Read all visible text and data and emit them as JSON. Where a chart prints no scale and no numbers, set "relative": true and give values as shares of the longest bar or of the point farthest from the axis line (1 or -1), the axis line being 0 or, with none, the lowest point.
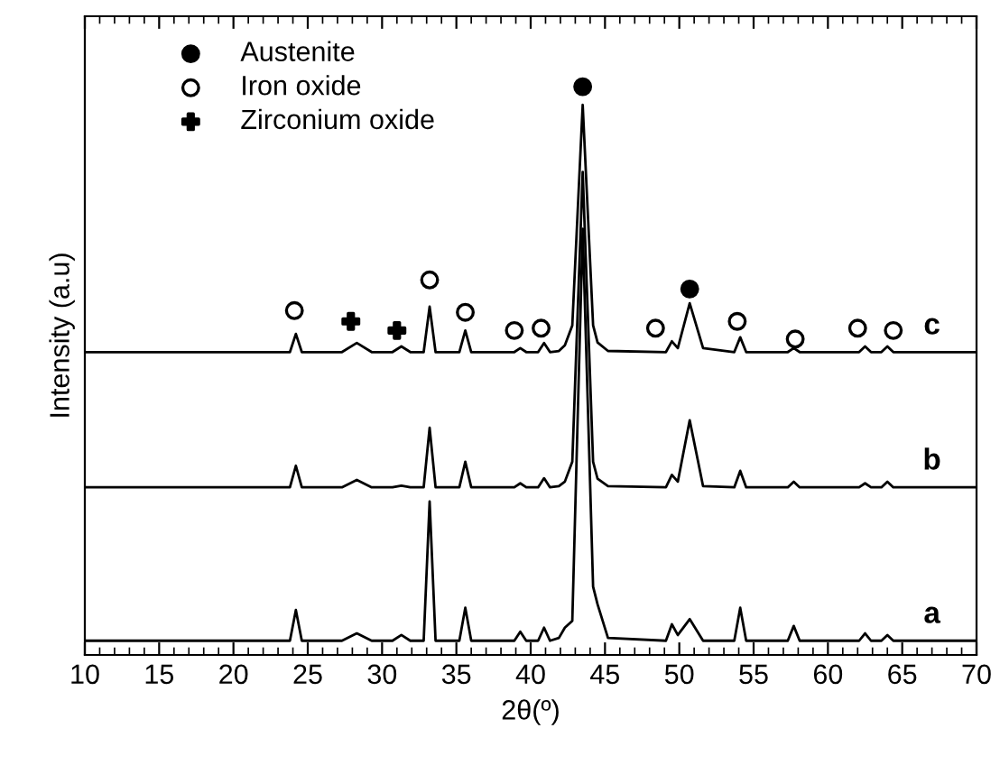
{
  "chart_data": {
    "type": "line",
    "relative": true,
    "xlabel": "2θ(º)",
    "ylabel": "Intensity (a.u)",
    "xlim": [
      10,
      70
    ],
    "xticks": [
      10,
      15,
      20,
      25,
      30,
      35,
      40,
      45,
      50,
      55,
      60,
      65,
      70
    ],
    "tick_labels": "x",
    "legend": "top left",
    "grid": false,
    "x": [
      10,
      23.8,
      24.2,
      24.6,
      27.3,
      28.3,
      29.3,
      30.7,
      31.3,
      31.9,
      32.8,
      33.2,
      33.6,
      35.2,
      35.6,
      36.0,
      38.9,
      39.3,
      39.7,
      40.5,
      40.9,
      41.3,
      41.9,
      42.3,
      42.8,
      43.5,
      44.2,
      44.5,
      45.2,
      49.1,
      49.5,
      49.9,
      50.7,
      51.6,
      53.7,
      54.1,
      54.5,
      57.3,
      57.7,
      58.1,
      62.1,
      62.5,
      62.9,
      63.6,
      64.0,
      64.4,
      70
    ],
    "series": [
      {
        "name": "a",
        "color": "#000000",
        "values": [
          0.025,
          0.025,
          0.079,
          0.025,
          0.025,
          0.038,
          0.025,
          0.025,
          0.035,
          0.025,
          0.025,
          0.27,
          0.025,
          0.025,
          0.083,
          0.025,
          0.025,
          0.041,
          0.025,
          0.025,
          0.048,
          0.025,
          0.03,
          0.048,
          0.06,
          0.75,
          0.12,
          0.089,
          0.03,
          0.025,
          0.054,
          0.035,
          0.063,
          0.025,
          0.025,
          0.083,
          0.025,
          0.025,
          0.051,
          0.025,
          0.025,
          0.038,
          0.025,
          0.025,
          0.035,
          0.025,
          0.025
        ]
      },
      {
        "name": "b",
        "color": "#000000",
        "values": [
          0.295,
          0.295,
          0.333,
          0.295,
          0.295,
          0.308,
          0.295,
          0.295,
          0.298,
          0.295,
          0.295,
          0.4,
          0.295,
          0.295,
          0.34,
          0.295,
          0.295,
          0.302,
          0.295,
          0.295,
          0.311,
          0.295,
          0.297,
          0.305,
          0.34,
          0.85,
          0.34,
          0.31,
          0.297,
          0.295,
          0.317,
          0.305,
          0.413,
          0.297,
          0.295,
          0.324,
          0.295,
          0.295,
          0.305,
          0.295,
          0.295,
          0.302,
          0.295,
          0.295,
          0.305,
          0.295,
          0.295
        ]
      },
      {
        "name": "c",
        "color": "#000000",
        "values": [
          0.533,
          0.533,
          0.565,
          0.533,
          0.533,
          0.549,
          0.533,
          0.533,
          0.543,
          0.533,
          0.533,
          0.613,
          0.533,
          0.533,
          0.571,
          0.533,
          0.533,
          0.54,
          0.533,
          0.533,
          0.549,
          0.533,
          0.535,
          0.545,
          0.58,
          0.968,
          0.58,
          0.55,
          0.535,
          0.533,
          0.552,
          0.54,
          0.619,
          0.54,
          0.533,
          0.559,
          0.533,
          0.533,
          0.54,
          0.533,
          0.533,
          0.543,
          0.533,
          0.533,
          0.543,
          0.533,
          0.533
        ]
      },
      {
        "name": "Austenite",
        "type": "scatter",
        "marker": "circle",
        "color": "#000000",
        "x": [
          43.5,
          50.7
        ],
        "values": [
          1.0,
          0.644
        ]
      },
      {
        "name": "Iron oxide",
        "type": "scatter",
        "marker": "circle",
        "color": "#ffffff",
        "x": [
          24.1,
          33.2,
          35.6,
          38.9,
          40.7,
          48.4,
          53.9,
          57.8,
          62.0,
          64.4
        ],
        "values": [
          0.606,
          0.66,
          0.603,
          0.571,
          0.575,
          0.575,
          0.587,
          0.556,
          0.575,
          0.571
        ]
      },
      {
        "name": "Zirconium oxide",
        "type": "scatter",
        "marker": "cross",
        "color": "#000000",
        "x": [
          27.9,
          31.0
        ],
        "values": [
          0.587,
          0.571
        ]
      }
    ]
  }
}
